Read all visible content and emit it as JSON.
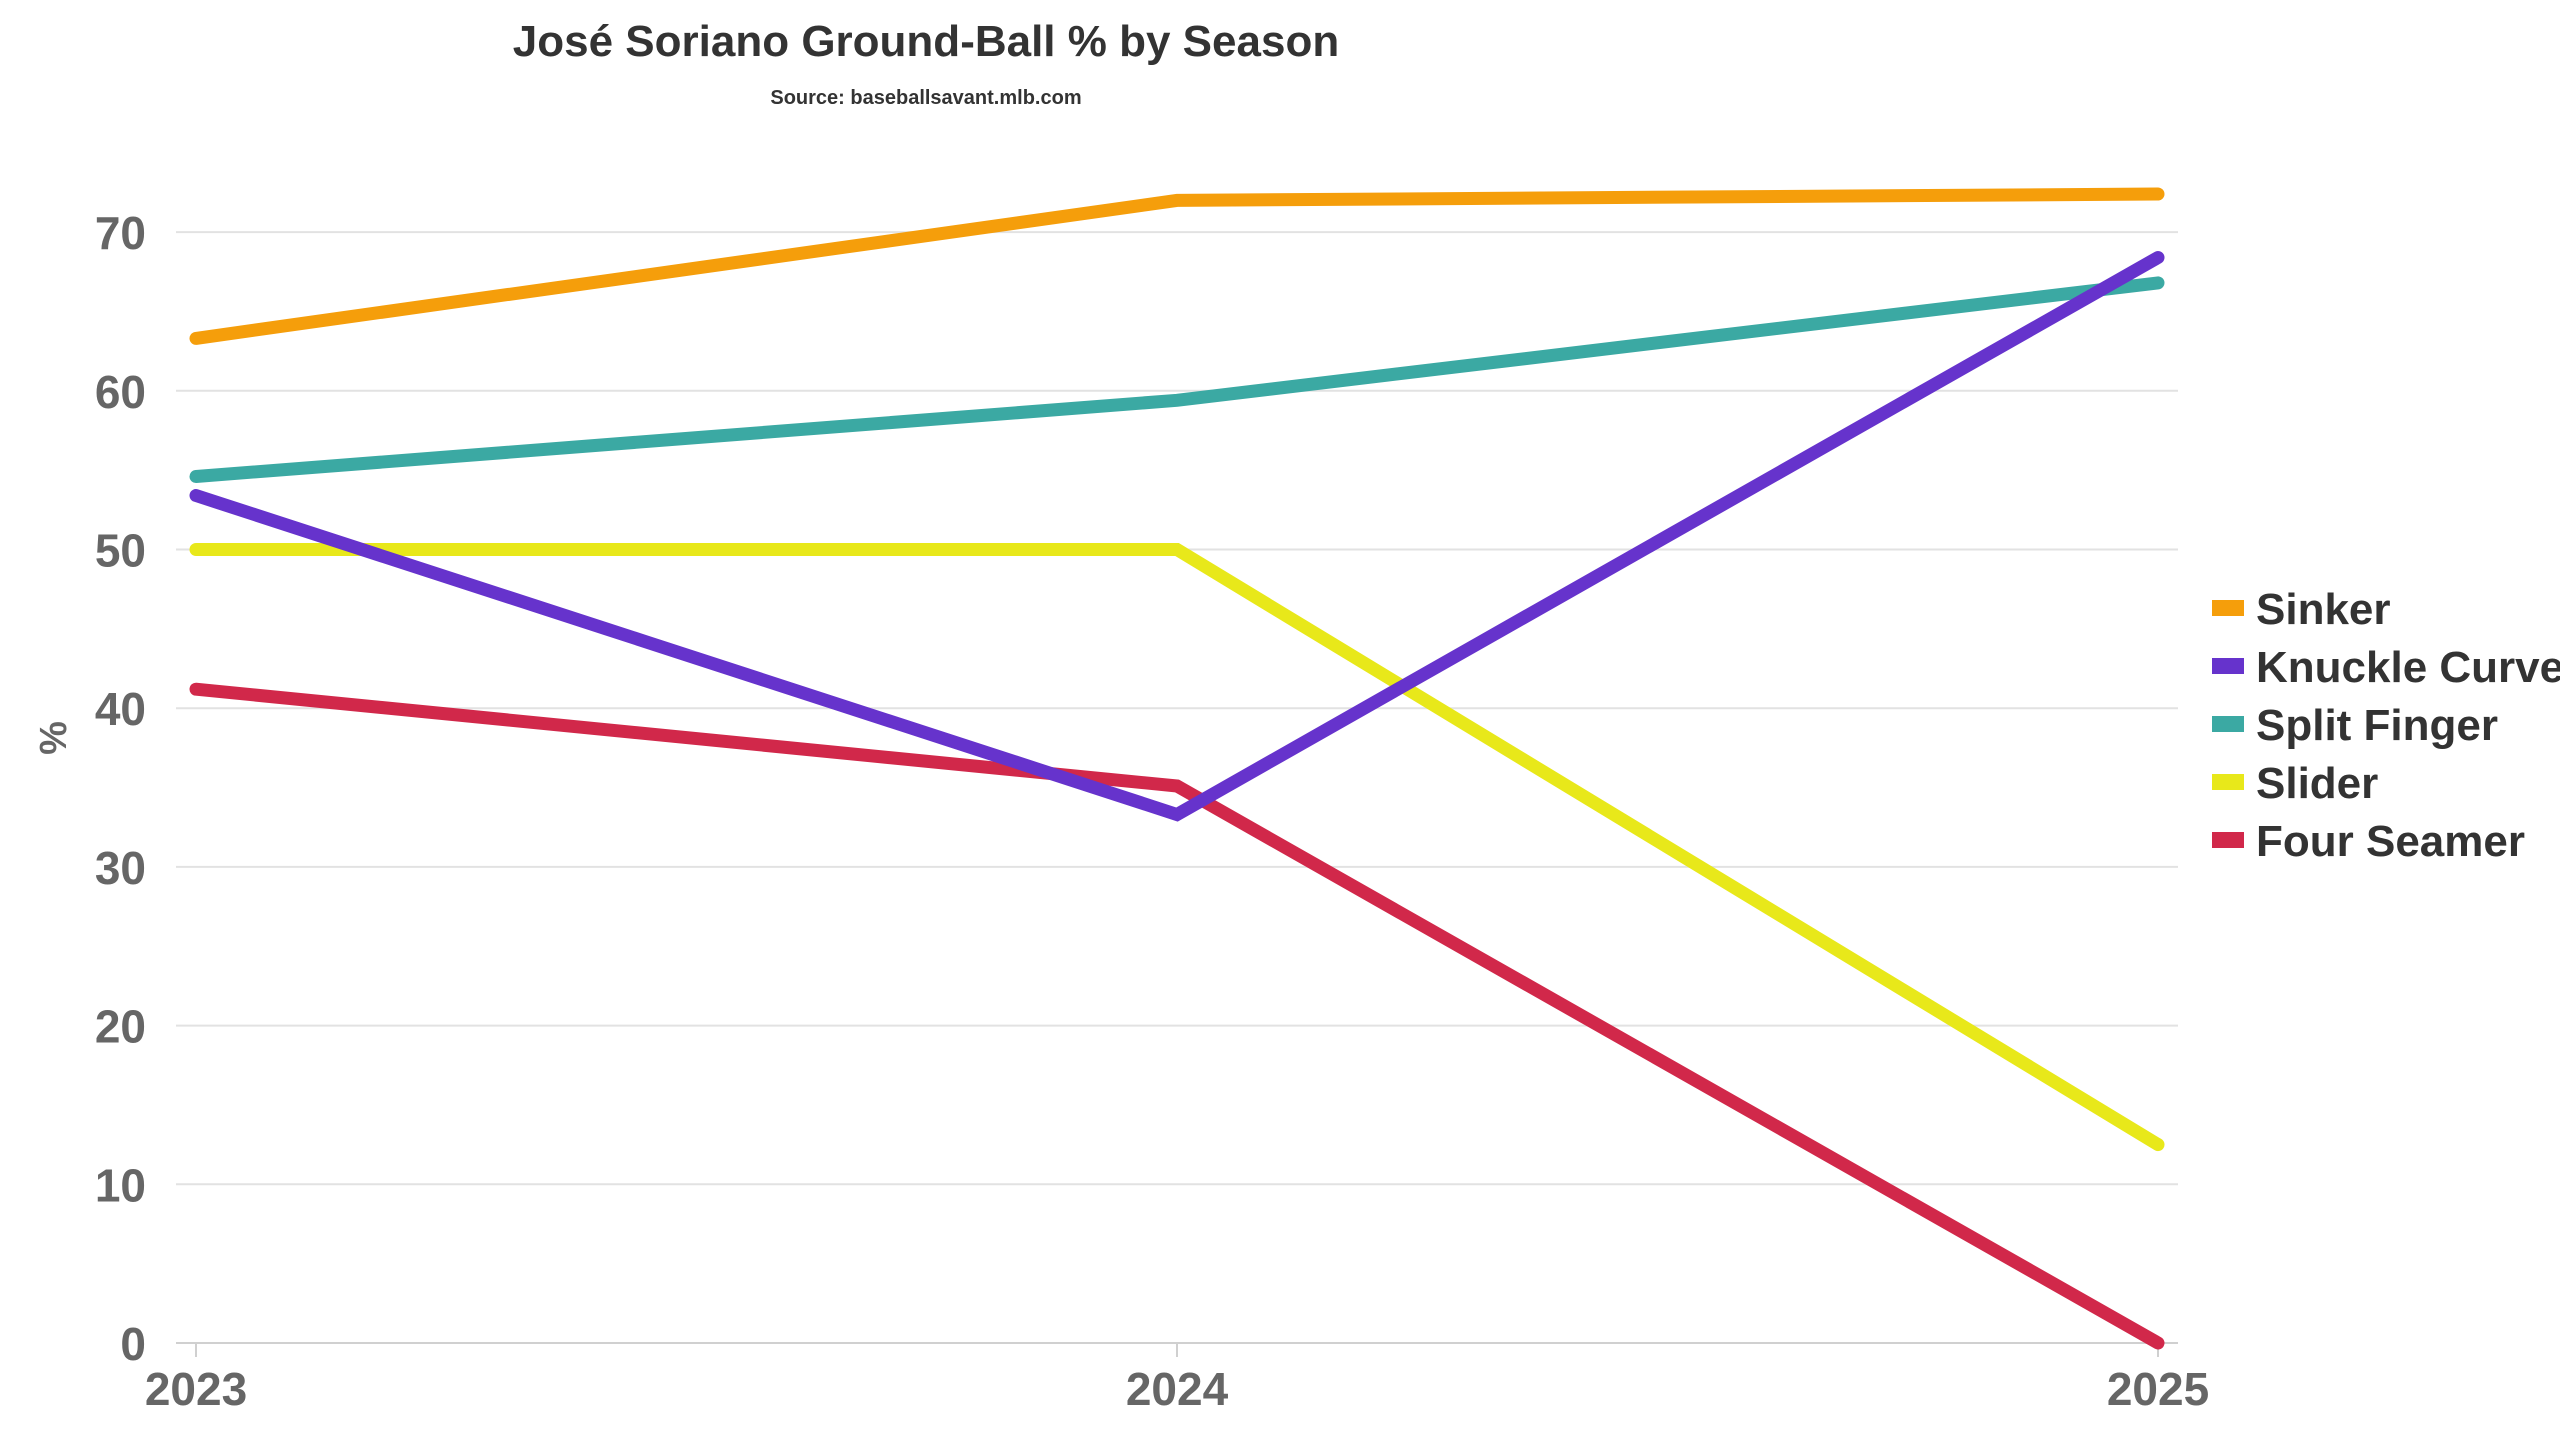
{
  "chart_data": {
    "type": "line",
    "title": "José Soriano Ground-Ball % by Season",
    "subtitle": "Source: baseballsavant.mlb.com",
    "xlabel": "",
    "ylabel": "%",
    "x": [
      "2023",
      "2024",
      "2025"
    ],
    "ylim": [
      0,
      75
    ],
    "yticks": [
      "0",
      "10",
      "20",
      "30",
      "40",
      "50",
      "60",
      "70"
    ],
    "grid": true,
    "legend_position": "right",
    "series": [
      {
        "name": "Sinker",
        "color": "#F59E0B",
        "values": [
          63.3,
          72.0,
          72.4
        ]
      },
      {
        "name": "Knuckle Curve",
        "color": "#6633CC",
        "values": [
          53.4,
          33.3,
          68.4
        ]
      },
      {
        "name": "Split Finger",
        "color": "#3BA9A3",
        "values": [
          54.6,
          59.4,
          66.8
        ]
      },
      {
        "name": "Slider",
        "color": "#E8E81A",
        "values": [
          50.0,
          50.0,
          12.5
        ]
      },
      {
        "name": "Four Seamer",
        "color": "#D1284A",
        "values": [
          41.2,
          35.1,
          0.0
        ]
      }
    ]
  }
}
